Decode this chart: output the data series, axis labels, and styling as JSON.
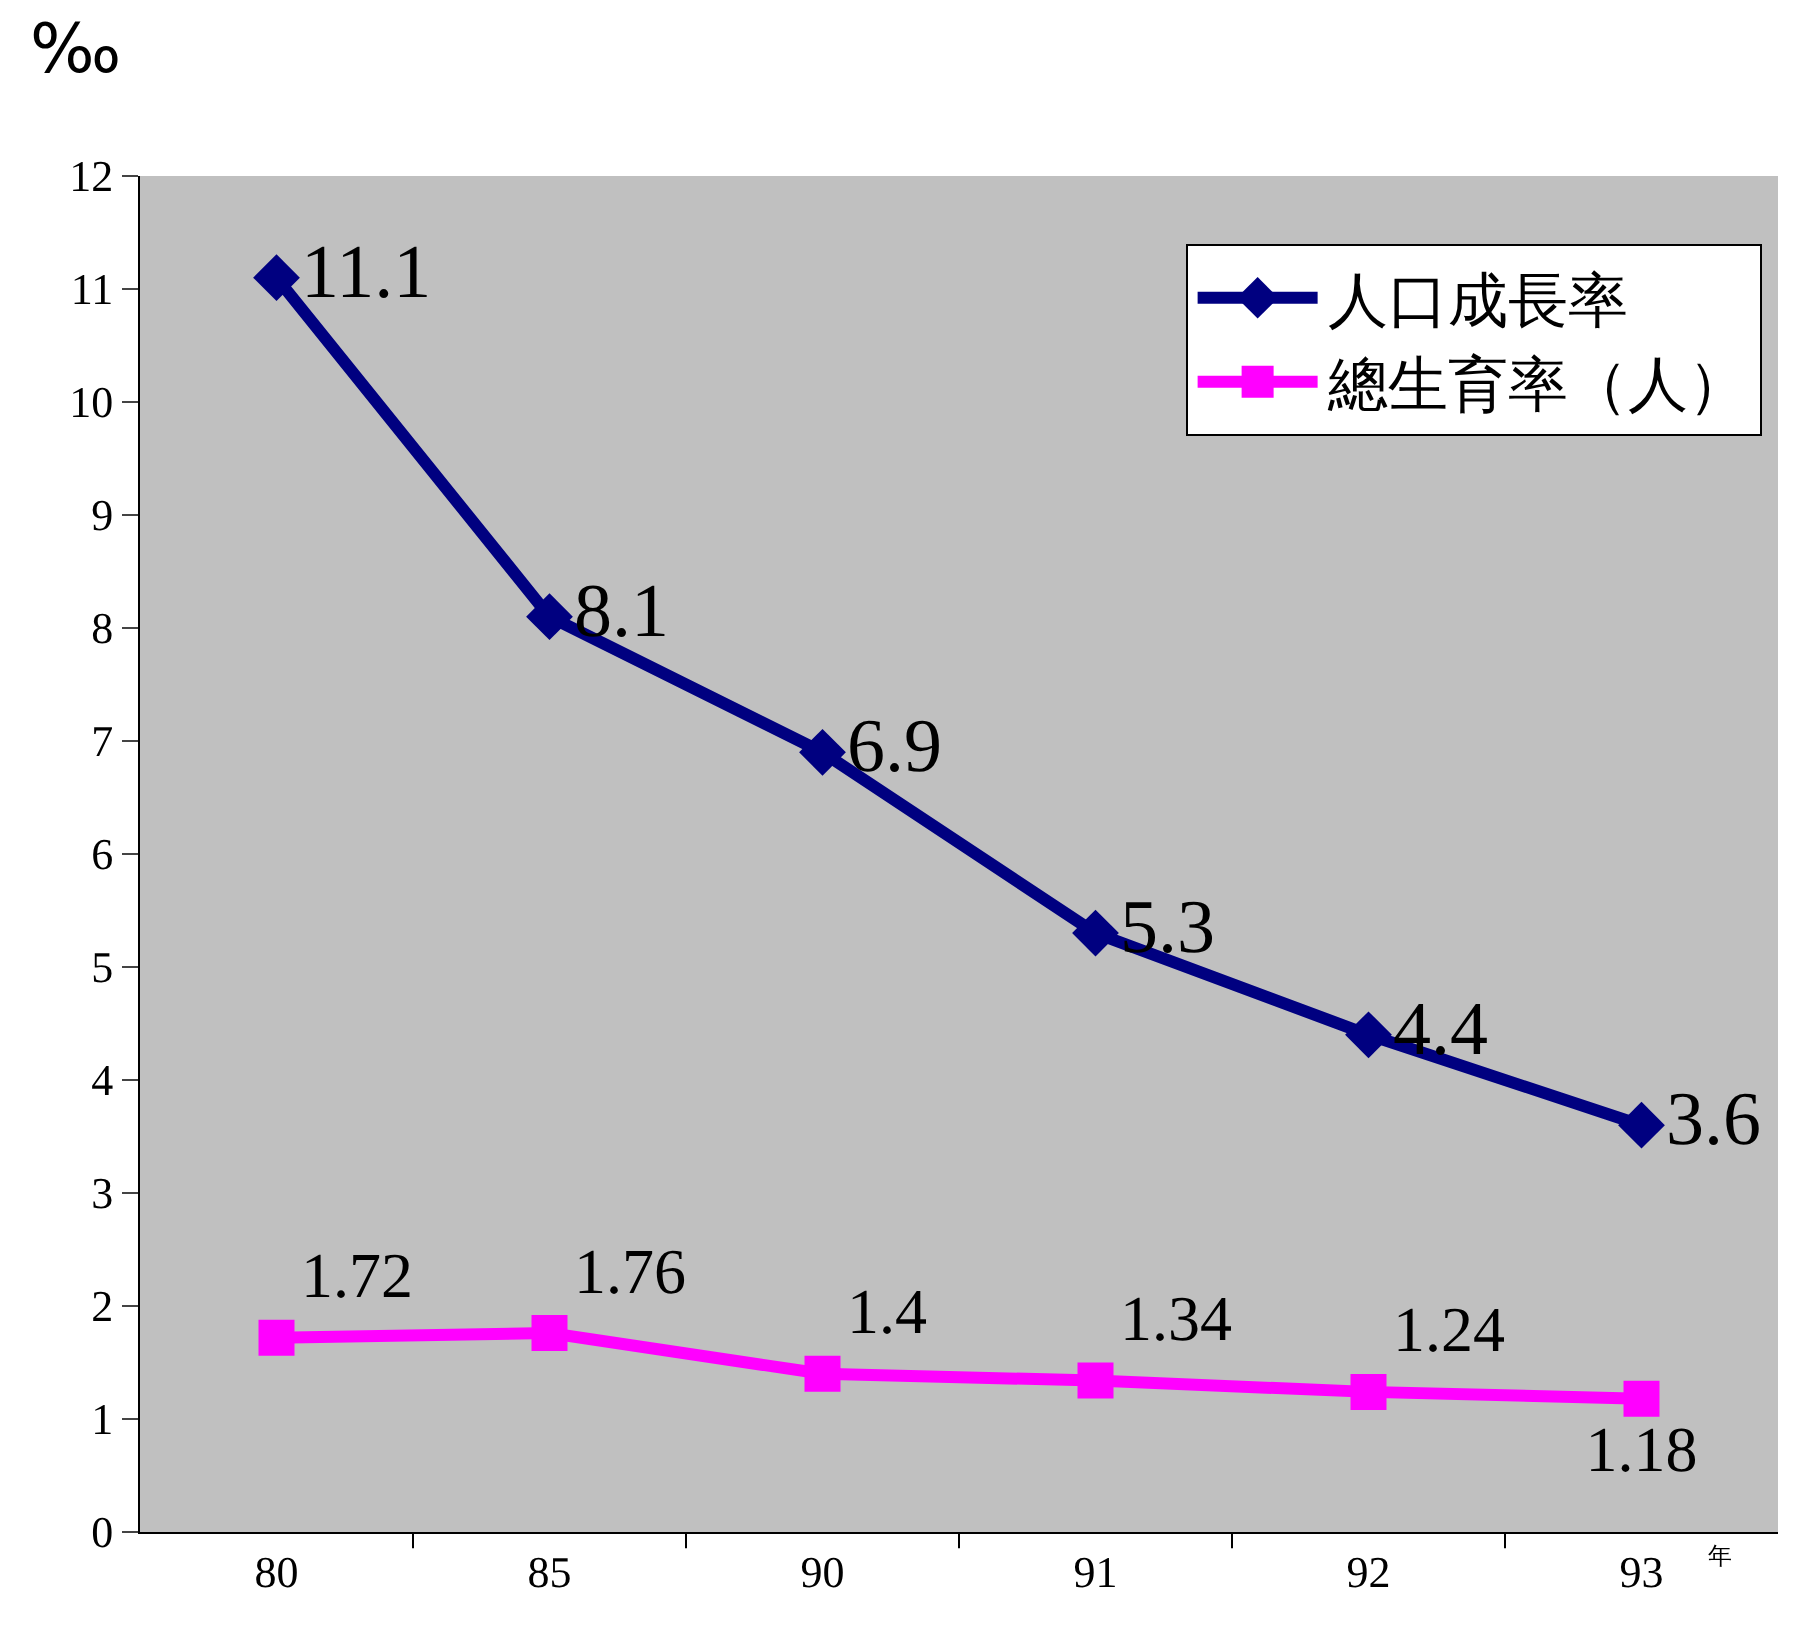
{
  "chart_data": {
    "type": "line",
    "ylabel": "‰",
    "xlabel": "年",
    "categories": [
      "80",
      "85",
      "90",
      "91",
      "92",
      "93"
    ],
    "series": [
      {
        "name": "人口成長率",
        "color": "#000080",
        "values": [
          11.1,
          8.1,
          6.9,
          5.3,
          4.4,
          3.6
        ],
        "marker": "diamond"
      },
      {
        "name": "總生育率（人）",
        "color": "#ff00ff",
        "values": [
          1.72,
          1.76,
          1.4,
          1.34,
          1.24,
          1.18
        ],
        "marker": "square"
      }
    ],
    "ylim": [
      0,
      12
    ],
    "yticks": [
      0,
      1,
      2,
      3,
      4,
      5,
      6,
      7,
      8,
      9,
      10,
      11,
      12
    ],
    "grid": false,
    "legend": "top right",
    "data_labels": true,
    "line_style": "solid"
  }
}
